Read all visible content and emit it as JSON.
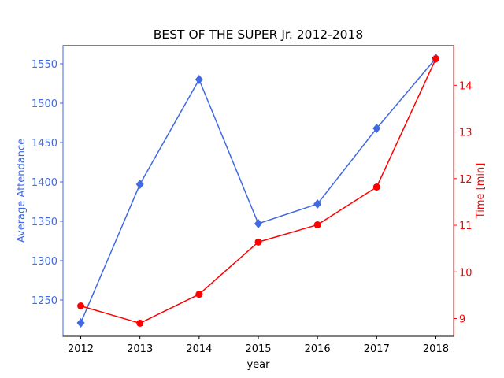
{
  "chart_data": {
    "type": "line",
    "title": "BEST OF THE SUPER Jr. 2012-2018",
    "xlabel": "year",
    "ylabel": "Average Attendance",
    "y2label": "Time [min]",
    "x": [
      2012,
      2013,
      2014,
      2015,
      2016,
      2017,
      2018
    ],
    "xlim": [
      2011.7,
      2018.3
    ],
    "xticks": [
      2012,
      2013,
      2014,
      2015,
      2016,
      2017,
      2018
    ],
    "ylim": [
      1204,
      1573
    ],
    "yticks": [
      1250,
      1300,
      1350,
      1400,
      1450,
      1500,
      1550
    ],
    "y2lim": [
      8.62,
      14.85
    ],
    "y2ticks": [
      9,
      10,
      11,
      12,
      13,
      14
    ],
    "ylabel_color": "#4169e1",
    "y2label_color": "#ff0000",
    "series": [
      {
        "color": "#4169e1",
        "marker": "diamond",
        "values": [
          1221,
          1397,
          1530,
          1347,
          1372,
          1468,
          1557
        ]
      },
      {
        "color": "#ff0000",
        "marker": "circle",
        "axis": "y2",
        "values": [
          9.27,
          8.9,
          9.52,
          10.64,
          11.01,
          11.82,
          14.57
        ]
      }
    ]
  }
}
